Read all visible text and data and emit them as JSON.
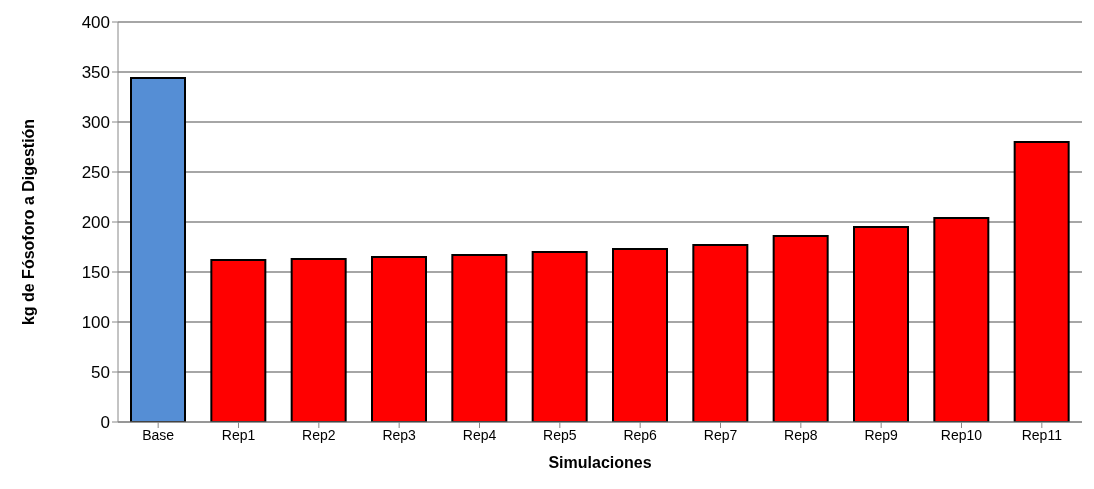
{
  "chart_data": {
    "type": "bar",
    "xlabel": "Simulaciones",
    "ylabel": "kg de Fósoforo a Digestión",
    "categories": [
      "Base",
      "Rep1",
      "Rep2",
      "Rep3",
      "Rep4",
      "Rep5",
      "Rep6",
      "Rep7",
      "Rep8",
      "Rep9",
      "Rep10",
      "Rep11"
    ],
    "values": [
      344,
      162,
      163,
      165,
      167,
      170,
      173,
      177,
      186,
      195,
      204,
      280
    ],
    "colors": [
      "#558ed5",
      "#ff0000",
      "#ff0000",
      "#ff0000",
      "#ff0000",
      "#ff0000",
      "#ff0000",
      "#ff0000",
      "#ff0000",
      "#ff0000",
      "#ff0000",
      "#ff0000"
    ],
    "ylim": [
      0,
      400
    ],
    "yticks": [
      0,
      50,
      100,
      150,
      200,
      250,
      300,
      350,
      400
    ],
    "grid": "y"
  }
}
